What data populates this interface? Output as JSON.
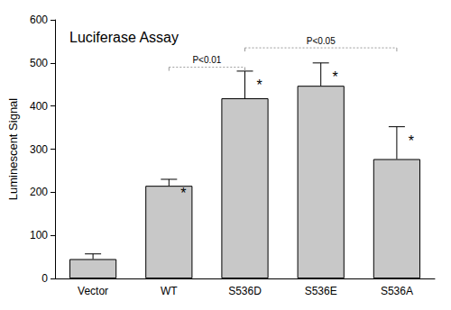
{
  "chart_data": {
    "type": "bar",
    "title": "Luciferase Assay",
    "y_label": "Luminescent Signal",
    "categories": [
      "Vector",
      "WT",
      "S536D",
      "S536E",
      "S536A"
    ],
    "values": [
      45,
      215,
      418,
      447,
      277
    ],
    "errors": [
      12,
      15,
      63,
      53,
      75
    ],
    "significance": [
      null,
      "*",
      "*",
      "*",
      "*"
    ],
    "comparisons": [
      {
        "from": "WT",
        "to": "S536D",
        "y": 490,
        "label": "P<0.01"
      },
      {
        "from": "S536D",
        "to": "S536A",
        "y": 535,
        "label": "P<0.05"
      }
    ],
    "color": "#c8c8c8",
    "ylim": [
      0,
      600
    ],
    "yticks": [
      0,
      100,
      200,
      300,
      400,
      500,
      600
    ],
    "grid": false
  }
}
